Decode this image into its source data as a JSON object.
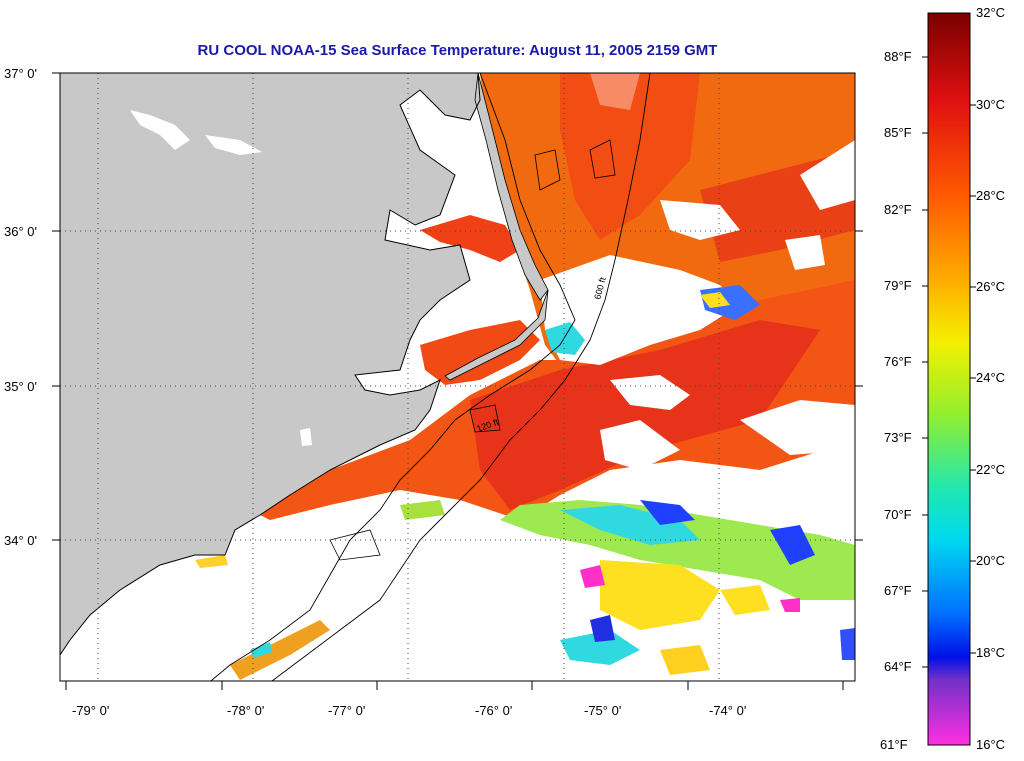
{
  "title": "RU COOL  NOAA-15  Sea Surface Temperature:  August 11, 2005 2159 GMT",
  "map": {
    "lat_labels": [
      "37° 0'",
      "36° 0'",
      "35° 0'",
      "34° 0'"
    ],
    "lon_labels": [
      "-79° 0'",
      "-78° 0'",
      "-77° 0'",
      "-76° 0'",
      "-75° 0'",
      "-74° 0'"
    ],
    "isobath_labels": [
      "120 ft",
      "600 ft"
    ],
    "colors": {
      "land": "#c8c8c8",
      "cloud": "#ffffff",
      "warm": "#f04010"
    }
  },
  "colorbar": {
    "celsius": [
      "32°C",
      "30°C",
      "28°C",
      "26°C",
      "24°C",
      "22°C",
      "20°C",
      "18°C",
      "16°C"
    ],
    "fahrenheit": [
      "88°F",
      "85°F",
      "82°F",
      "79°F",
      "76°F",
      "73°F",
      "70°F",
      "67°F",
      "64°F",
      "61°F"
    ]
  }
}
